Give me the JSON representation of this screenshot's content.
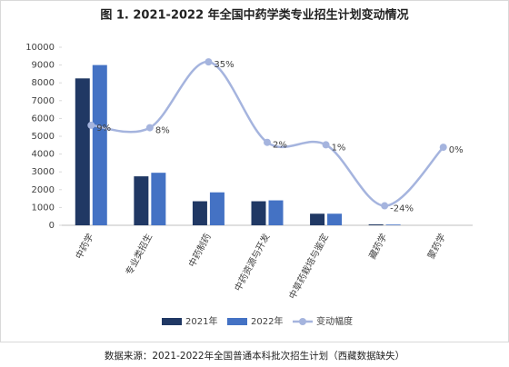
{
  "chart_data": {
    "type": "bar-line",
    "title": "图 1. 2021-2022 年全国中药学类专业招生计划变动情况",
    "source": "数据来源：2021-2022年全国普通本科批次招生计划（西藏数据缺失）",
    "categories": [
      "中药学",
      "专业类招生",
      "中药制药",
      "中药资源与开发",
      "中草药栽培与鉴定",
      "藏药学",
      "蒙药学"
    ],
    "series": [
      {
        "name": "2021年",
        "type": "bar",
        "color": "#203864",
        "values": [
          8250,
          2750,
          1350,
          1350,
          650,
          50,
          0
        ]
      },
      {
        "name": "2022年",
        "type": "bar",
        "color": "#4472c4",
        "values": [
          9000,
          2950,
          1850,
          1400,
          650,
          40,
          0
        ]
      },
      {
        "name": "变动幅度",
        "type": "line",
        "axis": "y2",
        "color": "#a5b4de",
        "values": [
          9,
          8,
          35,
          2,
          1,
          -24,
          0
        ],
        "value_labels": [
          "9%",
          "8%",
          "35%",
          "2%",
          "1%",
          "-24%",
          "0%"
        ]
      }
    ],
    "ylim": [
      0,
      10000
    ],
    "yticks": [
      0,
      1000,
      2000,
      3000,
      4000,
      5000,
      6000,
      7000,
      8000,
      9000,
      10000
    ],
    "y2lim": [
      -32,
      41
    ],
    "grid": false,
    "legend": "bottom"
  }
}
